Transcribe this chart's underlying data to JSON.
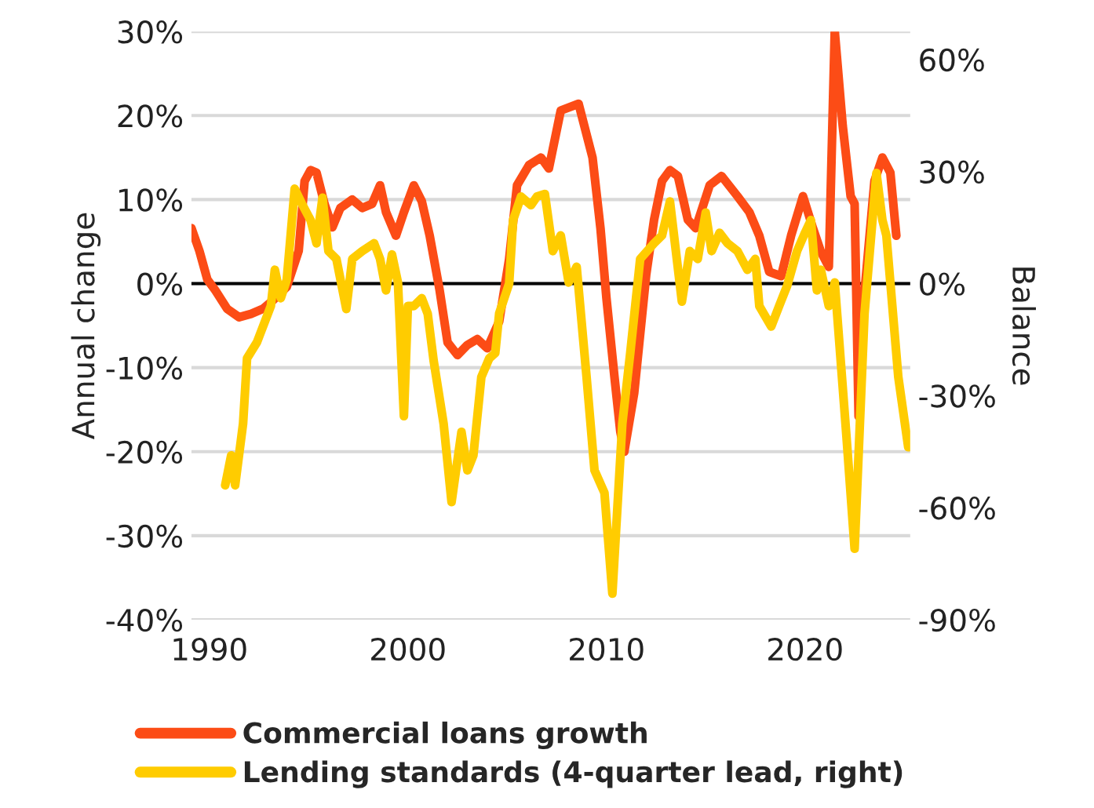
{
  "chart_data": {
    "type": "line",
    "ylabel": "Annual change",
    "y2label": "Balance",
    "xlim": [
      1989.1,
      2025.3
    ],
    "xticks": [
      1990,
      2000,
      2010,
      2020
    ],
    "ylim": [
      -40,
      30
    ],
    "yticks": [
      {
        "value": -40,
        "label": "-40%"
      },
      {
        "value": -30,
        "label": "-30%"
      },
      {
        "value": -20,
        "label": "-20%"
      },
      {
        "value": -10,
        "label": "-10%"
      },
      {
        "value": 0,
        "label": "0%"
      },
      {
        "value": 10,
        "label": "10%"
      },
      {
        "value": 20,
        "label": "20%"
      },
      {
        "value": 30,
        "label": "30%"
      }
    ],
    "y2lim": [
      -90,
      67.5
    ],
    "y2ticks": [
      {
        "value": -90,
        "label": "-90%"
      },
      {
        "value": -60,
        "label": "-60%"
      },
      {
        "value": -30,
        "label": "-30%"
      },
      {
        "value": 0,
        "label": "0%"
      },
      {
        "value": 30,
        "label": "30%"
      },
      {
        "value": 60,
        "label": "60%"
      }
    ],
    "grid": "y",
    "legend": "bottom",
    "line_style": "solid",
    "marker": "none",
    "ref_lines": [
      {
        "axis": "y",
        "value": 0,
        "color": "#000000"
      }
    ],
    "series": [
      {
        "name": "Commercial loans growth",
        "color": "#fc4c16",
        "x": [
          1989.1,
          1989.5,
          1989.9,
          1990.3,
          1990.9,
          1991.5,
          1992.1,
          1992.7,
          1993.2,
          1993.9,
          1994.5,
          1994.8,
          1995.1,
          1995.4,
          1995.8,
          1996.2,
          1996.6,
          1997.2,
          1997.7,
          1998.2,
          1998.6,
          1998.9,
          1999.4,
          1999.8,
          2000.3,
          2000.7,
          2001.1,
          2001.6,
          2002.0,
          2002.5,
          2003.0,
          2003.5,
          2004.0,
          2004.6,
          2005.1,
          2005.5,
          2006.1,
          2006.7,
          2007.1,
          2007.7,
          2008.6,
          2009.3,
          2009.7,
          2010.0,
          2010.4,
          2010.7,
          2010.9,
          2011.4,
          2012.0,
          2012.4,
          2012.8,
          2013.2,
          2013.6,
          2014.1,
          2014.5,
          2015.2,
          2015.8,
          2016.6,
          2017.2,
          2017.7,
          2018.2,
          2018.8,
          2019.3,
          2019.9,
          2020.4,
          2020.8,
          2021.2,
          2021.5,
          2021.9,
          2022.3,
          2022.5,
          2022.7,
          2022.9,
          2023.5,
          2023.9,
          2024.3,
          2024.6
        ],
        "values": [
          6.6,
          3.9,
          0.5,
          -0.8,
          -3,
          -4,
          -3.6,
          -3,
          -2,
          -0.4,
          3.9,
          12.2,
          13.5,
          13.2,
          9.5,
          6.7,
          9,
          10,
          9,
          9.5,
          11.7,
          8.5,
          5.7,
          8.5,
          11.7,
          9.8,
          5.7,
          -0.8,
          -7,
          -8.5,
          -7.3,
          -6.6,
          -7.7,
          -4.5,
          2.9,
          11.7,
          14.1,
          15,
          13.7,
          20.6,
          21.4,
          15,
          6.6,
          -1.7,
          -11,
          -17.6,
          -20,
          -13,
          1,
          7.6,
          12.2,
          13.5,
          12.8,
          7.6,
          6.6,
          11.7,
          12.8,
          10.4,
          8.5,
          5.7,
          1.4,
          0.9,
          5.7,
          10.4,
          6.6,
          3.8,
          2,
          30,
          18.8,
          10.4,
          9.5,
          -15.8,
          -3.6,
          12.2,
          15,
          13.2,
          5.7
        ]
      },
      {
        "name": "Lending standards (4-quarter lead, right)",
        "color": "#ffcc00",
        "axis": "y2",
        "x": [
          1990.8,
          1991.1,
          1991.3,
          1991.7,
          1991.9,
          1992.4,
          1993.1,
          1993.3,
          1993.6,
          1993.9,
          1994.3,
          1994.7,
          1995.1,
          1995.4,
          1995.7,
          1996.0,
          1996.4,
          1996.9,
          1997.2,
          1997.7,
          1998.3,
          1998.6,
          1998.9,
          1999.2,
          1999.5,
          1999.8,
          2000.0,
          2000.3,
          2000.7,
          2001.0,
          2001.3,
          2001.8,
          2002.2,
          2002.7,
          2003.0,
          2003.3,
          2003.7,
          2004.1,
          2004.4,
          2004.6,
          2005.1,
          2005.3,
          2005.7,
          2006.2,
          2006.5,
          2006.9,
          2007.3,
          2007.7,
          2008.1,
          2008.5,
          2009.0,
          2009.4,
          2009.9,
          2010.3,
          2010.8,
          2011.2,
          2011.7,
          2012.4,
          2012.8,
          2013.2,
          2013.8,
          2014.2,
          2014.6,
          2015.0,
          2015.3,
          2015.7,
          2016.1,
          2016.6,
          2017.1,
          2017.5,
          2017.7,
          2018.3,
          2018.7,
          2019.1,
          2019.6,
          2020.0,
          2020.3,
          2020.6,
          2020.8,
          2021.2,
          2021.5,
          2022.1,
          2022.5,
          2023.0,
          2023.6,
          2023.9,
          2024.1,
          2024.7,
          2025.2
        ],
        "values": [
          -54,
          -46,
          -54,
          -37.5,
          -20,
          -15.7,
          -6,
          3.7,
          -3.9,
          1,
          25.4,
          21,
          17,
          10.8,
          23,
          8.7,
          6.6,
          -6.8,
          6.6,
          8.7,
          10.8,
          6.6,
          -1.8,
          7.8,
          0.3,
          -35.5,
          -6,
          -6,
          -3.9,
          -8.1,
          -20.7,
          -37.5,
          -58.5,
          -39.7,
          -50,
          -46,
          -25,
          -20,
          -18.6,
          -8,
          0,
          17,
          23.3,
          21,
          23.3,
          24,
          8.7,
          12.9,
          0.3,
          4.5,
          -25,
          -50,
          -56,
          -83,
          -37.5,
          -18.6,
          6.6,
          10.8,
          12.9,
          22,
          -4.8,
          8.7,
          6.6,
          19,
          8.7,
          13.6,
          10.8,
          8.7,
          3.7,
          6.6,
          -6,
          -11.5,
          -6,
          -0.6,
          8.7,
          13.6,
          17,
          -1.8,
          3.7,
          -6,
          0.3,
          -41.7,
          -71,
          -8,
          29.6,
          17,
          12.9,
          -25,
          -43.8
        ]
      }
    ]
  }
}
